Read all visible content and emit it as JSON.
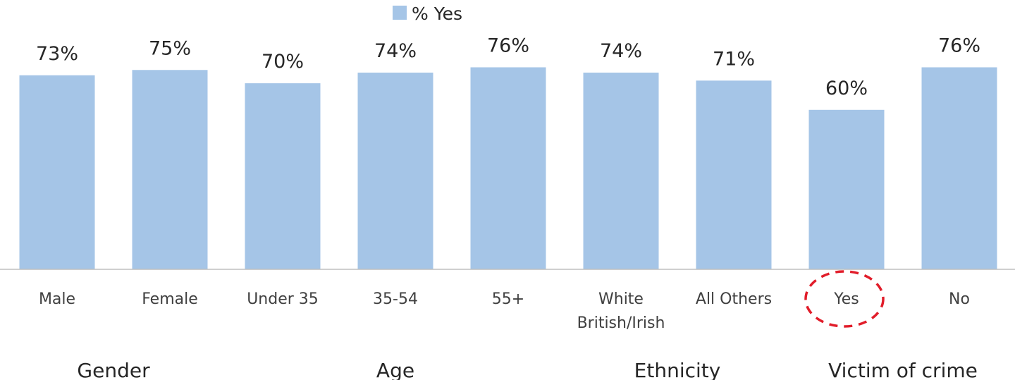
{
  "chart_data": {
    "type": "bar",
    "legend": {
      "label": "% Yes",
      "position": "top",
      "color": "#a5c5e7"
    },
    "categories": [
      [
        "Male"
      ],
      [
        "Female"
      ],
      [
        "Under 35"
      ],
      [
        "35-54"
      ],
      [
        "55+"
      ],
      [
        "White",
        "British/Irish"
      ],
      [
        "All Others"
      ],
      [
        "Yes"
      ],
      [
        "No"
      ]
    ],
    "series": [
      {
        "name": "% Yes",
        "values": [
          73,
          75,
          70,
          74,
          76,
          74,
          71,
          60,
          76
        ],
        "value_labels": [
          "73%",
          "75%",
          "70%",
          "74%",
          "76%",
          "74%",
          "71%",
          "60%",
          "76%"
        ]
      }
    ],
    "groups": [
      {
        "label": "Gender",
        "categories": [
          0,
          1
        ]
      },
      {
        "label": "Age",
        "categories": [
          2,
          3,
          4
        ]
      },
      {
        "label": "Ethnicity",
        "categories": [
          5,
          6
        ]
      },
      {
        "label": "Victim of crime",
        "categories": [
          7,
          8
        ]
      }
    ],
    "highlight": {
      "category_index": 7,
      "style": "dashed-circle",
      "color": "#e11d2a"
    },
    "ylim": [
      0,
      100
    ],
    "grid": false,
    "bar_color": "#a5c5e7",
    "axis_color": "#bfbfbf"
  }
}
